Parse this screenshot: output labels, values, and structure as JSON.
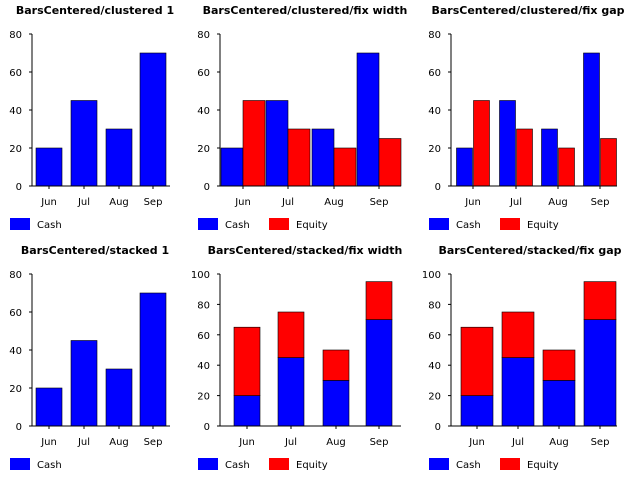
{
  "colors": {
    "Cash": "#0000ff",
    "Equity": "#ff0000"
  },
  "chart_data": [
    {
      "type": "bar",
      "title": "BarsCentered/clustered 1",
      "categories": [
        "Jun",
        "Jul",
        "Aug",
        "Sep"
      ],
      "series": [
        {
          "name": "Cash",
          "values": [
            20,
            45,
            30,
            70
          ]
        }
      ],
      "ylim": [
        0,
        80
      ],
      "yticks": [
        0,
        20,
        40,
        60,
        80
      ],
      "layout": "clustered",
      "legend": [
        "Cash"
      ]
    },
    {
      "type": "bar",
      "title": "BarsCentered/clustered/fix width",
      "categories": [
        "Jun",
        "Jul",
        "Aug",
        "Sep"
      ],
      "series": [
        {
          "name": "Cash",
          "values": [
            20,
            45,
            30,
            70
          ]
        },
        {
          "name": "Equity",
          "values": [
            45,
            30,
            20,
            25
          ]
        }
      ],
      "ylim": [
        0,
        80
      ],
      "yticks": [
        0,
        20,
        40,
        60,
        80
      ],
      "layout": "clustered",
      "legend": [
        "Cash",
        "Equity"
      ]
    },
    {
      "type": "bar",
      "title": "BarsCentered/clustered/fix gap",
      "categories": [
        "Jun",
        "Jul",
        "Aug",
        "Sep"
      ],
      "series": [
        {
          "name": "Cash",
          "values": [
            20,
            45,
            30,
            70
          ]
        },
        {
          "name": "Equity",
          "values": [
            45,
            30,
            20,
            25
          ]
        }
      ],
      "ylim": [
        0,
        80
      ],
      "yticks": [
        0,
        20,
        40,
        60,
        80
      ],
      "layout": "clustered",
      "legend": [
        "Cash",
        "Equity"
      ]
    },
    {
      "type": "bar",
      "title": "BarsCentered/stacked 1",
      "categories": [
        "Jun",
        "Jul",
        "Aug",
        "Sep"
      ],
      "series": [
        {
          "name": "Cash",
          "values": [
            20,
            45,
            30,
            70
          ]
        }
      ],
      "ylim": [
        0,
        80
      ],
      "yticks": [
        0,
        20,
        40,
        60,
        80
      ],
      "layout": "stacked",
      "legend": [
        "Cash"
      ]
    },
    {
      "type": "bar",
      "title": "BarsCentered/stacked/fix width",
      "categories": [
        "Jun",
        "Jul",
        "Aug",
        "Sep"
      ],
      "series": [
        {
          "name": "Cash",
          "values": [
            20,
            45,
            30,
            70
          ]
        },
        {
          "name": "Equity",
          "values": [
            45,
            30,
            20,
            25
          ]
        }
      ],
      "ylim": [
        0,
        100
      ],
      "yticks": [
        0,
        20,
        40,
        60,
        80,
        100
      ],
      "layout": "stacked",
      "legend": [
        "Cash",
        "Equity"
      ]
    },
    {
      "type": "bar",
      "title": "BarsCentered/stacked/fix gap",
      "categories": [
        "Jun",
        "Jul",
        "Aug",
        "Sep"
      ],
      "series": [
        {
          "name": "Cash",
          "values": [
            20,
            45,
            30,
            70
          ]
        },
        {
          "name": "Equity",
          "values": [
            45,
            30,
            20,
            25
          ]
        }
      ],
      "ylim": [
        0,
        100
      ],
      "yticks": [
        0,
        20,
        40,
        60,
        80,
        100
      ],
      "layout": "stacked",
      "legend": [
        "Cash",
        "Equity"
      ]
    }
  ]
}
